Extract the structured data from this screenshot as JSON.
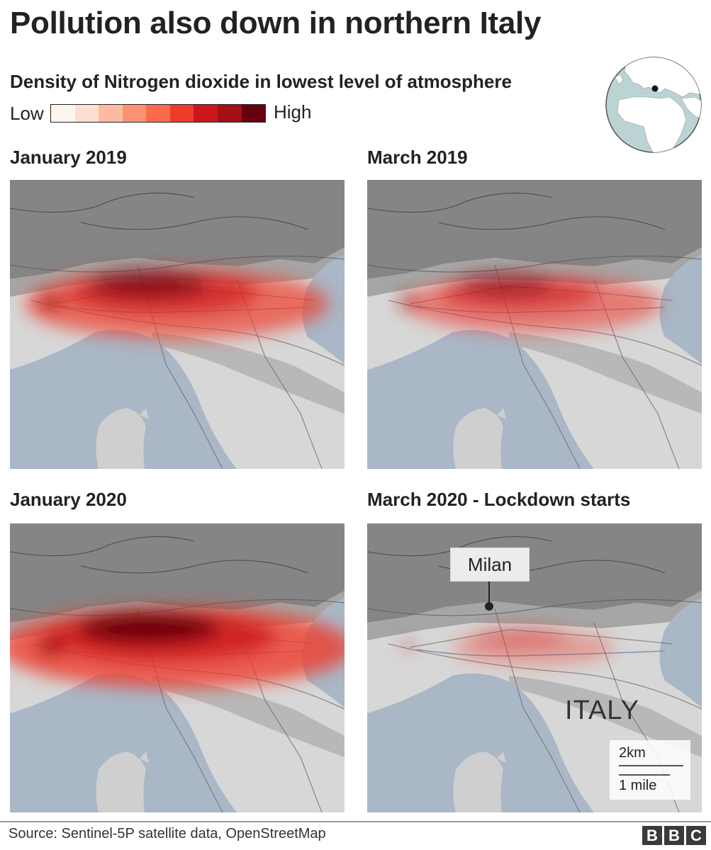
{
  "header": {
    "title": "Pollution also down in northern Italy",
    "subtitle": "Density of Nitrogen dioxide in lowest level of atmosphere"
  },
  "legend": {
    "low_label": "Low",
    "high_label": "High",
    "colors": [
      "#fff5f0",
      "#fde0d2",
      "#fcbba1",
      "#fc9272",
      "#fb6a4a",
      "#ef3b2c",
      "#cb181d",
      "#a50f15",
      "#67000d"
    ]
  },
  "chart_data": {
    "type": "heatmap",
    "measure": "Density of Nitrogen dioxide in lowest level of atmosphere",
    "scale": [
      "Low",
      "High"
    ],
    "panels": [
      {
        "title": "January 2019",
        "relative_intensity": 0.8
      },
      {
        "title": "March 2019",
        "relative_intensity": 0.6
      },
      {
        "title": "January 2020",
        "relative_intensity": 1.0
      },
      {
        "title": "March 2020 - Lockdown starts",
        "relative_intensity": 0.22
      }
    ]
  },
  "annotations": {
    "city": "Milan",
    "country": "ITALY",
    "scale_km": "2km",
    "scale_mile": "1 mile"
  },
  "footer": {
    "source": "Source: Sentinel-5P satellite data, OpenStreetMap",
    "brand_letters": [
      "B",
      "B",
      "C"
    ]
  },
  "colors": {
    "sea": "#a9b7c7",
    "land_light": "#d7d7d7",
    "mountains": "#858585",
    "accent": "#b2182b"
  }
}
